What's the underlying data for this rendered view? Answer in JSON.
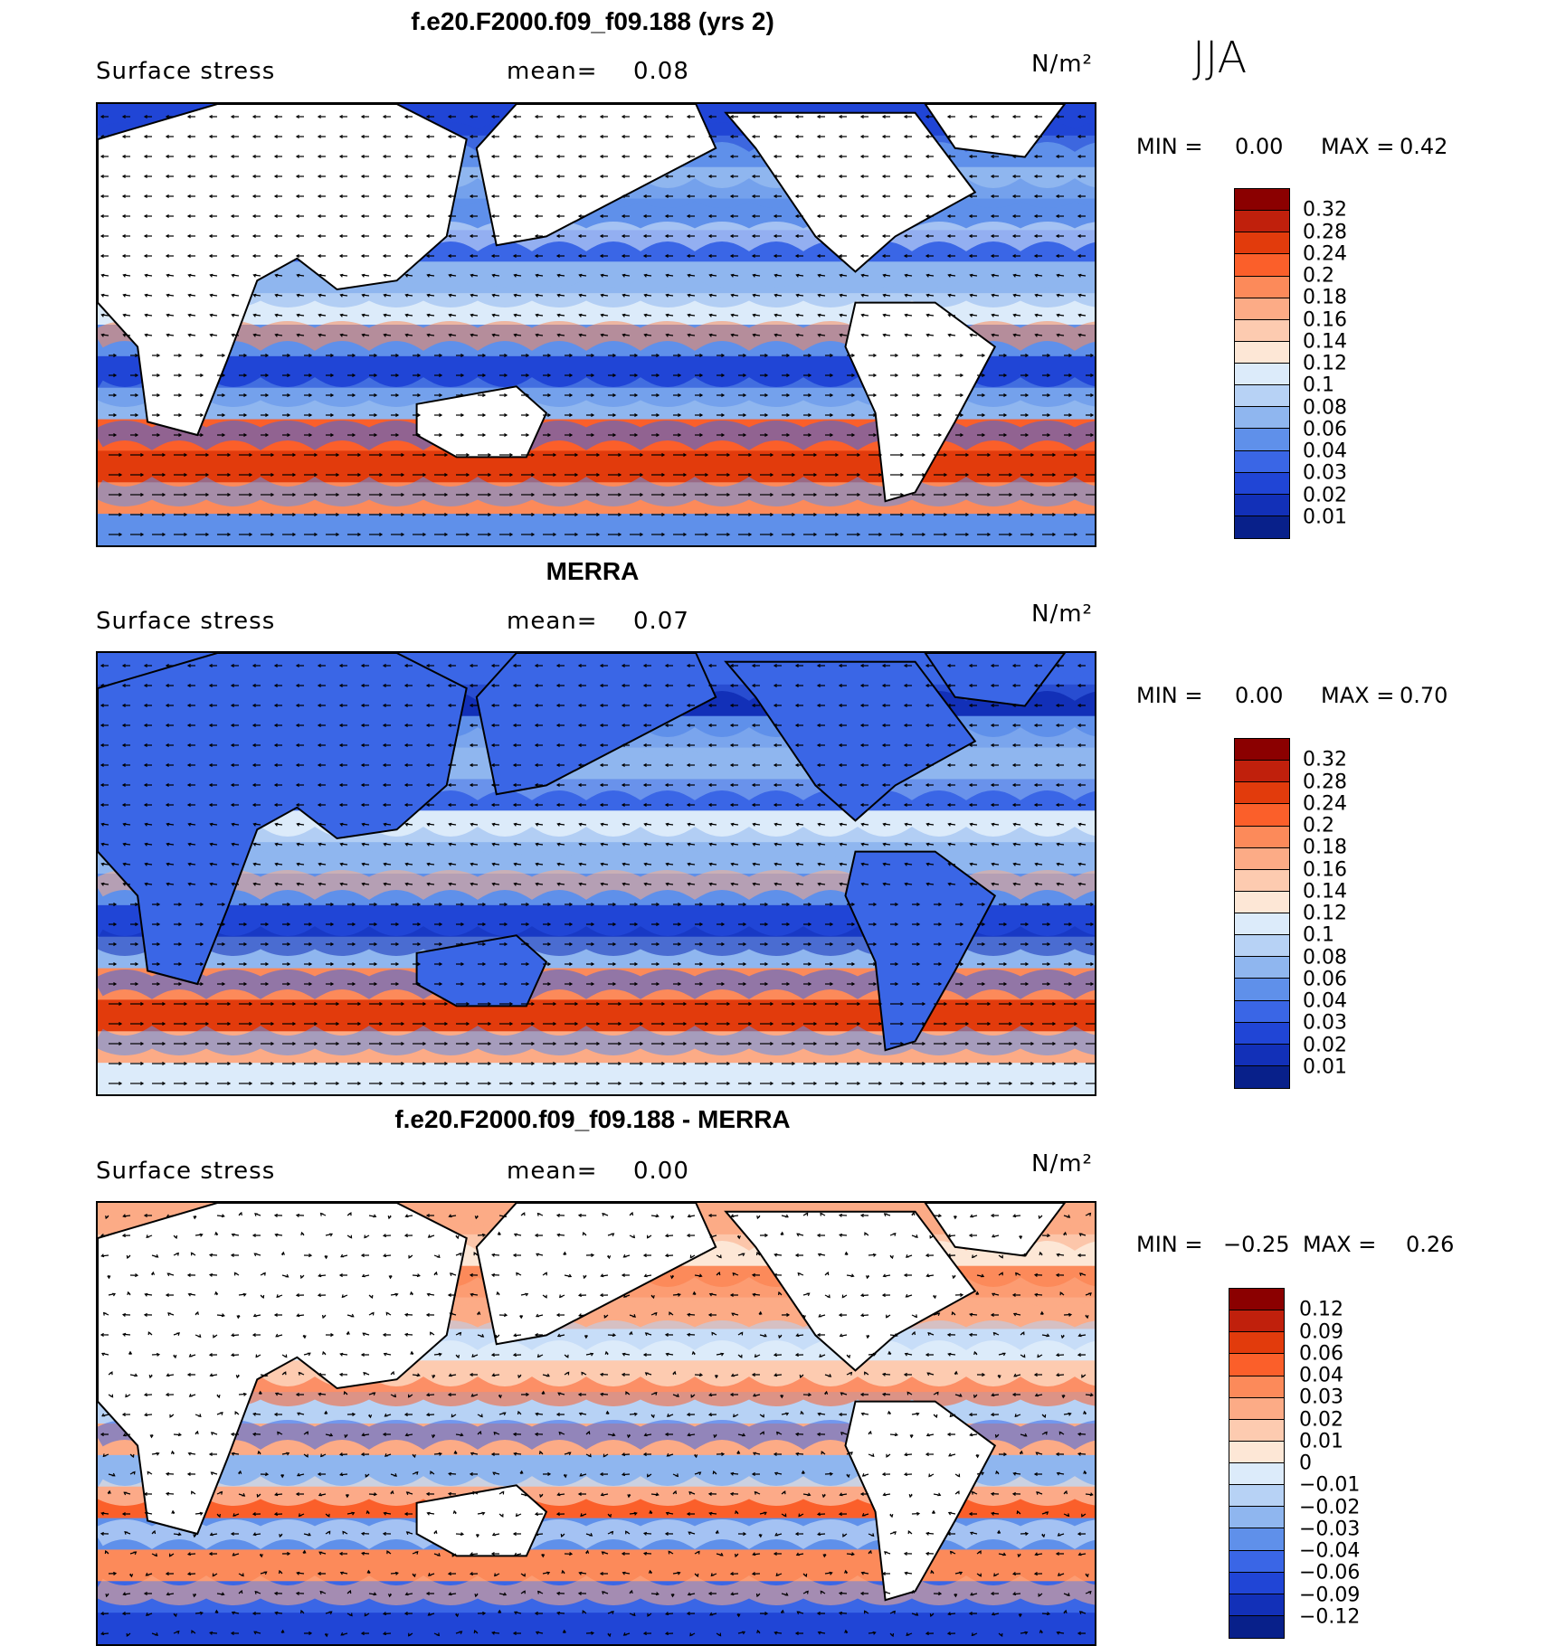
{
  "season": "JJA",
  "panels": [
    {
      "title": "f.e20.F2000.f09_f09.188 (yrs 2)",
      "variable": "Surface stress",
      "mean_label": "mean=",
      "mean_value": "0.08",
      "units": "N/m²",
      "min_label": "MIN =",
      "min_value": "0.00",
      "max_label": "MAX =",
      "max_value": "0.42",
      "colorbar": {
        "labels": [
          "0.32",
          "0.28",
          "0.24",
          "0.2",
          "0.18",
          "0.16",
          "0.14",
          "0.12",
          "0.1",
          "0.08",
          "0.06",
          "0.04",
          "0.03",
          "0.02",
          "0.01"
        ],
        "colors": [
          "#8b0000",
          "#c0200c",
          "#e23b0c",
          "#fb5f2a",
          "#fc8a5a",
          "#fcab86",
          "#fdcbb0",
          "#fde7d6",
          "#dcebfa",
          "#b7d2f5",
          "#8fb6ef",
          "#5f90ea",
          "#3a66e6",
          "#2045d6",
          "#1230b8",
          "#08208a"
        ]
      }
    },
    {
      "title": "MERRA",
      "variable": "Surface stress",
      "mean_label": "mean=",
      "mean_value": "0.07",
      "units": "N/m²",
      "min_label": "MIN =",
      "min_value": "0.00",
      "max_label": "MAX =",
      "max_value": "0.70",
      "colorbar": {
        "labels": [
          "0.32",
          "0.28",
          "0.24",
          "0.2",
          "0.18",
          "0.16",
          "0.14",
          "0.12",
          "0.1",
          "0.08",
          "0.06",
          "0.04",
          "0.03",
          "0.02",
          "0.01"
        ],
        "colors": [
          "#8b0000",
          "#c0200c",
          "#e23b0c",
          "#fb5f2a",
          "#fc8a5a",
          "#fcab86",
          "#fdcbb0",
          "#fde7d6",
          "#dcebfa",
          "#b7d2f5",
          "#8fb6ef",
          "#5f90ea",
          "#3a66e6",
          "#2045d6",
          "#1230b8",
          "#08208a"
        ]
      }
    },
    {
      "title": "f.e20.F2000.f09_f09.188 - MERRA",
      "variable": "Surface stress",
      "mean_label": "mean=",
      "mean_value": "0.00",
      "units": "N/m²",
      "min_label": "MIN =",
      "min_value": "−0.25",
      "max_label": "MAX =",
      "max_value": "0.26",
      "colorbar": {
        "labels": [
          "0.12",
          "0.09",
          "0.06",
          "0.04",
          "0.03",
          "0.02",
          "0.01",
          "0",
          "−0.01",
          "−0.02",
          "−0.03",
          "−0.04",
          "−0.06",
          "−0.09",
          "−0.12"
        ],
        "colors": [
          "#8b0000",
          "#c0200c",
          "#e23b0c",
          "#fb5f2a",
          "#fc8a5a",
          "#fcab86",
          "#fdcbb0",
          "#fde7d6",
          "#dcebfa",
          "#b7d2f5",
          "#8fb6ef",
          "#5f90ea",
          "#3a66e6",
          "#2045d6",
          "#1230b8",
          "#08208a"
        ]
      }
    }
  ]
}
